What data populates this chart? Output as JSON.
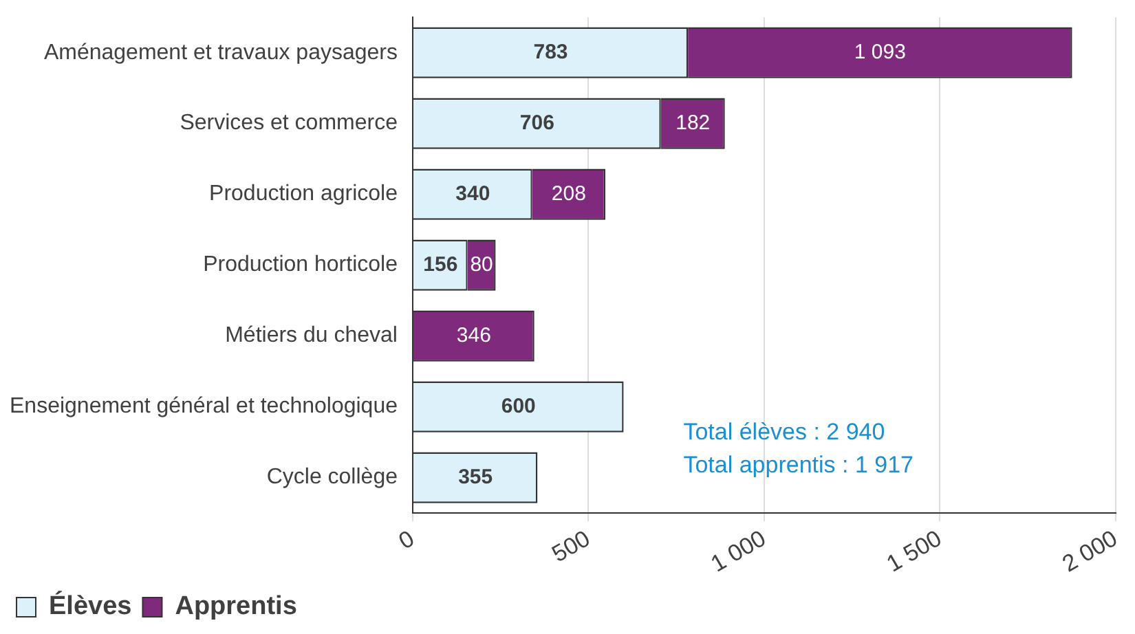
{
  "chart_data": {
    "type": "bar",
    "orientation": "horizontal",
    "stacked": true,
    "categories": [
      "Aménagement et travaux paysagers",
      "Services et commerce",
      "Production agricole",
      "Production horticole",
      "Métiers du cheval",
      "Enseignement général et technologique",
      "Cycle collège"
    ],
    "series": [
      {
        "name": "Élèves",
        "color": "#ddf1fb",
        "values": [
          783,
          706,
          340,
          156,
          null,
          600,
          355
        ],
        "value_labels": [
          "783",
          "706",
          "340",
          "156",
          null,
          "600",
          "355"
        ]
      },
      {
        "name": "Apprentis",
        "color": "#7f2a7d",
        "values": [
          1093,
          182,
          208,
          80,
          346,
          null,
          null
        ],
        "value_labels": [
          "1 093",
          "182",
          "208",
          "80",
          "346",
          null,
          null
        ]
      }
    ],
    "xlim": [
      0,
      2000
    ],
    "xticks": [
      0,
      500,
      {
        "value": 1000,
        "label": "1 000"
      },
      {
        "value": 1500,
        "label": "1 500"
      },
      {
        "value": 2000,
        "label": "2 000"
      }
    ],
    "grid": "x",
    "legend": "bottom left",
    "annotations": [
      "Total élèves : 2 940",
      "Total apprentis : 1 917"
    ]
  }
}
